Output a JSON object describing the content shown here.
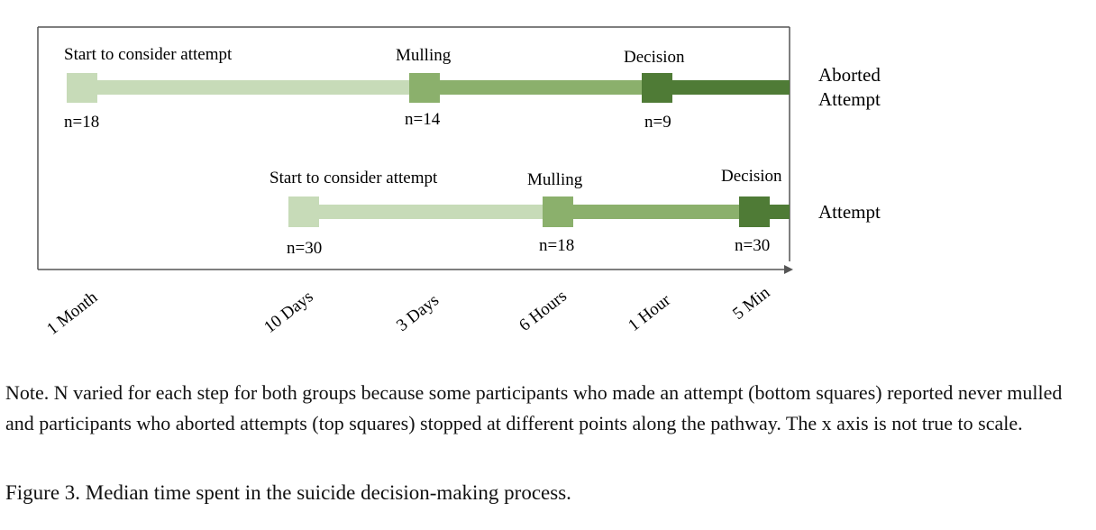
{
  "rows": [
    {
      "label_lines": [
        "Aborted",
        "Attempt"
      ],
      "stages": [
        {
          "name": "Start to consider attempt",
          "n": "n=18"
        },
        {
          "name": "Mulling",
          "n": "n=14"
        },
        {
          "name": "Decision",
          "n": "n=9"
        }
      ]
    },
    {
      "label_lines": [
        "Attempt"
      ],
      "stages": [
        {
          "name": "Start to consider attempt",
          "n": "n=30"
        },
        {
          "name": "Mulling",
          "n": "n=18"
        },
        {
          "name": "Decision",
          "n": "n=30"
        }
      ]
    }
  ],
  "axis": {
    "ticks": [
      "1 Month",
      "10 Days",
      "3 Days",
      "6 Hours",
      "1 Hour",
      "5 Min"
    ]
  },
  "colors": {
    "stage1": "#c7dbb8",
    "stage2": "#8bb06c",
    "stage3": "#4f7b36",
    "frame": "#555555"
  },
  "note": "Note. N varied for each step for both groups because some participants who made an attempt (bottom squares) reported never mulled and participants who aborted attempts (top squares) stopped at different points along the pathway. The x axis is not true to scale.",
  "caption": "Figure 3. Median time spent in the suicide decision-making process."
}
